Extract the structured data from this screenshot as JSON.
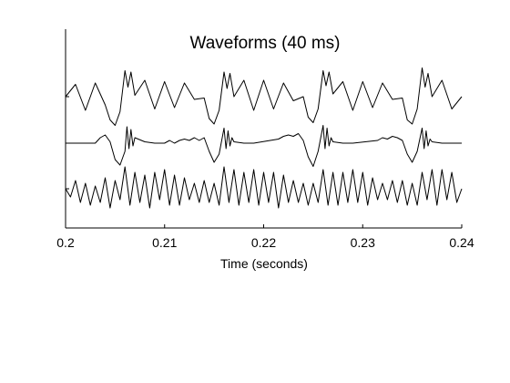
{
  "chart_data": {
    "type": "line",
    "title": "Waveforms (40 ms)",
    "xlabel": "Time (seconds)",
    "ylabel": "",
    "xlim": [
      0.2,
      0.24
    ],
    "xticks": [
      0.2,
      0.21,
      0.22,
      0.23,
      0.24
    ],
    "xtick_labels": [
      "0.2",
      "0.21",
      "0.22",
      "0.23",
      "0.24"
    ],
    "y_ticks_labeled": false,
    "grid": false,
    "legend": "none",
    "line_color": "#000000",
    "series": [
      {
        "x": [
          0.2,
          0.201,
          0.202,
          0.203,
          0.204,
          0.2045,
          0.205,
          0.2055,
          0.206,
          0.2063,
          0.2066,
          0.207,
          0.208,
          0.209,
          0.21,
          0.211,
          0.212,
          0.213,
          0.214,
          0.2145,
          0.215,
          0.2155,
          0.216,
          0.2163,
          0.2166,
          0.217,
          0.218,
          0.219,
          0.22,
          0.221,
          0.222,
          0.223,
          0.224,
          0.2245,
          0.225,
          0.2255,
          0.226,
          0.2263,
          0.2266,
          0.227,
          0.228,
          0.229,
          0.23,
          0.231,
          0.232,
          0.233,
          0.234,
          0.2345,
          0.235,
          0.2355,
          0.236,
          0.2363,
          0.2366,
          0.237,
          0.238,
          0.239,
          0.24
        ],
        "y": [
          0.0,
          0.45,
          -0.5,
          0.5,
          -0.3,
          -0.85,
          -1.05,
          -0.55,
          0.95,
          0.35,
          0.9,
          0.05,
          0.6,
          -0.45,
          0.55,
          -0.4,
          0.5,
          -0.1,
          -0.05,
          -0.8,
          -1.0,
          -0.5,
          0.9,
          0.3,
          0.85,
          0.0,
          0.6,
          -0.5,
          0.6,
          -0.45,
          0.5,
          -0.15,
          0.0,
          -0.75,
          -0.95,
          -0.45,
          0.95,
          0.4,
          0.9,
          0.1,
          0.55,
          -0.5,
          0.55,
          -0.4,
          0.5,
          -0.1,
          -0.05,
          -0.85,
          -1.0,
          -0.45,
          1.05,
          0.35,
          0.85,
          0.0,
          0.6,
          -0.45,
          0.0
        ]
      },
      {
        "x": [
          0.2,
          0.203,
          0.2035,
          0.204,
          0.2045,
          0.205,
          0.2055,
          0.206,
          0.2062,
          0.2064,
          0.2066,
          0.2068,
          0.207,
          0.208,
          0.209,
          0.21,
          0.2105,
          0.211,
          0.2115,
          0.212,
          0.2125,
          0.213,
          0.2135,
          0.214,
          0.2145,
          0.215,
          0.2155,
          0.216,
          0.2162,
          0.2164,
          0.2166,
          0.2168,
          0.217,
          0.218,
          0.219,
          0.2215,
          0.222,
          0.2225,
          0.223,
          0.2235,
          0.224,
          0.2245,
          0.225,
          0.2255,
          0.226,
          0.2262,
          0.2264,
          0.2266,
          0.2268,
          0.227,
          0.228,
          0.229,
          0.2315,
          0.232,
          0.2325,
          0.233,
          0.2335,
          0.234,
          0.2345,
          0.235,
          0.2355,
          0.236,
          0.2362,
          0.2364,
          0.2366,
          0.2368,
          0.237,
          0.238,
          0.24
        ],
        "y": [
          0.0,
          0.0,
          0.2,
          0.3,
          0.05,
          -0.6,
          -0.8,
          -0.3,
          0.6,
          -0.2,
          0.5,
          -0.1,
          0.2,
          0.05,
          0.0,
          0.0,
          0.1,
          0.0,
          0.1,
          0.15,
          0.1,
          0.2,
          0.1,
          0.2,
          -0.3,
          -0.7,
          -0.4,
          0.55,
          -0.2,
          0.45,
          -0.1,
          0.2,
          0.05,
          0.0,
          0.0,
          0.15,
          0.25,
          0.3,
          0.25,
          0.35,
          0.1,
          -0.5,
          -0.85,
          -0.3,
          0.65,
          -0.2,
          0.55,
          -0.1,
          0.2,
          0.05,
          0.0,
          0.0,
          0.1,
          0.2,
          0.15,
          0.25,
          0.2,
          0.1,
          -0.4,
          -0.7,
          -0.3,
          0.55,
          -0.2,
          0.45,
          -0.1,
          0.15,
          0.05,
          0.0,
          0.0
        ]
      },
      {
        "x": [
          0.2,
          0.2005,
          0.201,
          0.2015,
          0.202,
          0.2025,
          0.203,
          0.2035,
          0.204,
          0.2045,
          0.205,
          0.2055,
          0.206,
          0.2065,
          0.207,
          0.2075,
          0.208,
          0.2085,
          0.209,
          0.2095,
          0.21,
          0.2105,
          0.211,
          0.2115,
          0.212,
          0.2125,
          0.213,
          0.2135,
          0.214,
          0.2145,
          0.215,
          0.2155,
          0.216,
          0.2165,
          0.217,
          0.2175,
          0.218,
          0.2185,
          0.219,
          0.2195,
          0.22,
          0.2205,
          0.221,
          0.2215,
          0.222,
          0.2225,
          0.223,
          0.2235,
          0.224,
          0.2245,
          0.225,
          0.2255,
          0.226,
          0.2265,
          0.227,
          0.2275,
          0.228,
          0.2285,
          0.229,
          0.2295,
          0.23,
          0.2305,
          0.231,
          0.2315,
          0.232,
          0.2325,
          0.233,
          0.2335,
          0.234,
          0.2345,
          0.235,
          0.2355,
          0.236,
          0.2365,
          0.237,
          0.2375,
          0.238,
          0.2385,
          0.239,
          0.2395,
          0.24
        ],
        "y": [
          0.0,
          -0.3,
          0.3,
          -0.5,
          0.2,
          -0.6,
          0.1,
          -0.5,
          0.4,
          -0.7,
          0.3,
          -0.4,
          0.8,
          -0.6,
          0.6,
          -0.5,
          0.5,
          -0.7,
          0.6,
          -0.4,
          0.7,
          -0.6,
          0.5,
          -0.6,
          0.4,
          -0.4,
          0.2,
          -0.5,
          0.3,
          -0.5,
          0.2,
          -0.6,
          0.8,
          -0.5,
          0.7,
          -0.6,
          0.6,
          -0.5,
          0.7,
          -0.6,
          0.6,
          -0.5,
          0.6,
          -0.7,
          0.5,
          -0.5,
          0.3,
          -0.5,
          0.2,
          -0.6,
          0.2,
          -0.5,
          0.7,
          -0.6,
          0.6,
          -0.6,
          0.6,
          -0.5,
          0.7,
          -0.5,
          0.6,
          -0.6,
          0.4,
          -0.4,
          0.2,
          -0.4,
          0.3,
          -0.5,
          0.3,
          -0.6,
          0.2,
          -0.6,
          0.6,
          -0.4,
          0.7,
          -0.6,
          0.7,
          -0.4,
          0.6,
          -0.5,
          0.0
        ]
      }
    ]
  }
}
